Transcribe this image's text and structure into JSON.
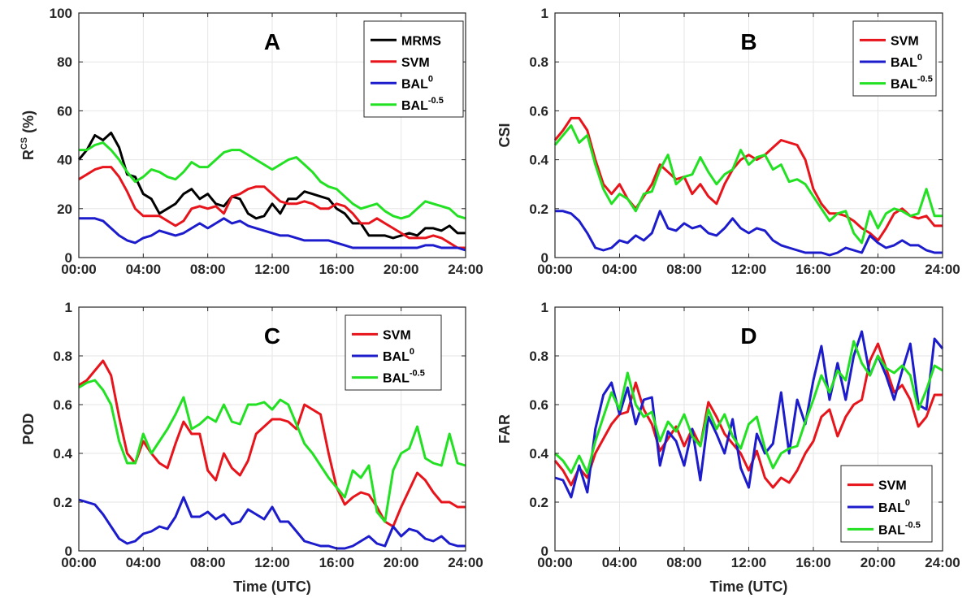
{
  "chart_data": [
    {
      "type": "line",
      "panel_letter": "A",
      "ylabel": "R",
      "ylabel_sup": "CS",
      "ylabel_suffix": " (%)",
      "xlabel": "",
      "xlim": [
        0,
        24
      ],
      "ylim": [
        0,
        100
      ],
      "yticks": [
        "0",
        "20",
        "40",
        "60",
        "80",
        "100"
      ],
      "xticks": [
        "00:00",
        "04:00",
        "08:00",
        "12:00",
        "16:00",
        "20:00",
        "24:00"
      ],
      "grid": true,
      "legend_position": "top-right",
      "x": [
        0,
        0.5,
        1,
        1.5,
        2,
        2.5,
        3,
        3.5,
        4,
        4.5,
        5,
        5.5,
        6,
        6.5,
        7,
        7.5,
        8,
        8.5,
        9,
        9.5,
        10,
        10.5,
        11,
        11.5,
        12,
        12.5,
        13,
        13.5,
        14,
        14.5,
        15,
        15.5,
        16,
        16.5,
        17,
        17.5,
        18,
        18.5,
        19,
        19.5,
        20,
        20.5,
        21,
        21.5,
        22,
        22.5,
        23,
        23.5,
        24
      ],
      "series": [
        {
          "name": "MRMS",
          "sup": "",
          "color": "#000000",
          "values": [
            40,
            44,
            50,
            48,
            51,
            45,
            34,
            33,
            26,
            24,
            18,
            20,
            22,
            26,
            28,
            24,
            26,
            22,
            21,
            25,
            24,
            18,
            16,
            17,
            22,
            18,
            24,
            24,
            27,
            26,
            25,
            24,
            20,
            18,
            14,
            14,
            9,
            9,
            9,
            8,
            9,
            10,
            9,
            12,
            12,
            11,
            13,
            10,
            10
          ]
        },
        {
          "name": "SVM",
          "sup": "",
          "color": "#e8141b",
          "values": [
            32,
            34,
            36,
            37,
            37,
            33,
            27,
            20,
            17,
            17,
            17,
            15,
            13,
            15,
            20,
            21,
            20,
            21,
            18,
            25,
            26,
            28,
            29,
            29,
            26,
            23,
            22,
            22,
            23,
            22,
            20,
            20,
            22,
            21,
            18,
            14,
            14,
            16,
            14,
            12,
            10,
            8,
            8,
            8,
            9,
            8,
            6,
            4,
            4
          ]
        },
        {
          "name": "BAL",
          "sup": "0",
          "color": "#1c1ccc",
          "values": [
            16,
            16,
            16,
            15,
            12,
            9,
            7,
            6,
            8,
            9,
            11,
            10,
            9,
            10,
            12,
            14,
            12,
            14,
            16,
            14,
            15,
            13,
            12,
            11,
            10,
            9,
            9,
            8,
            7,
            7,
            7,
            7,
            6,
            5,
            4,
            4,
            4,
            4,
            4,
            4,
            4,
            4,
            4,
            5,
            5,
            4,
            4,
            4,
            3
          ]
        },
        {
          "name": "BAL",
          "sup": "-0.5",
          "color": "#22e022",
          "values": [
            44,
            44,
            46,
            47,
            44,
            40,
            35,
            31,
            33,
            36,
            35,
            33,
            32,
            35,
            39,
            37,
            37,
            40,
            43,
            44,
            44,
            42,
            40,
            38,
            36,
            38,
            40,
            41,
            38,
            35,
            31,
            29,
            28,
            25,
            22,
            20,
            21,
            22,
            19,
            17,
            16,
            17,
            20,
            23,
            22,
            21,
            20,
            17,
            16
          ]
        }
      ]
    },
    {
      "type": "line",
      "panel_letter": "B",
      "ylabel": "CSI",
      "ylabel_sup": "",
      "ylabel_suffix": "",
      "xlabel": "",
      "xlim": [
        0,
        24
      ],
      "ylim": [
        0,
        1
      ],
      "yticks": [
        "0",
        "0.2",
        "0.4",
        "0.6",
        "0.8",
        "1"
      ],
      "xticks": [
        "00:00",
        "04:00",
        "08:00",
        "12:00",
        "16:00",
        "20:00",
        "24:00"
      ],
      "grid": true,
      "legend_position": "top-right",
      "x": [
        0,
        0.5,
        1,
        1.5,
        2,
        2.5,
        3,
        3.5,
        4,
        4.5,
        5,
        5.5,
        6,
        6.5,
        7,
        7.5,
        8,
        8.5,
        9,
        9.5,
        10,
        10.5,
        11,
        11.5,
        12,
        12.5,
        13,
        13.5,
        14,
        14.5,
        15,
        15.5,
        16,
        16.5,
        17,
        17.5,
        18,
        18.5,
        19,
        19.5,
        20,
        20.5,
        21,
        21.5,
        22,
        22.5,
        23,
        23.5,
        24
      ],
      "series": [
        {
          "name": "SVM",
          "sup": "",
          "color": "#e8141b",
          "values": [
            0.48,
            0.52,
            0.57,
            0.57,
            0.52,
            0.4,
            0.3,
            0.26,
            0.3,
            0.24,
            0.2,
            0.25,
            0.3,
            0.38,
            0.35,
            0.32,
            0.33,
            0.26,
            0.3,
            0.25,
            0.22,
            0.3,
            0.36,
            0.4,
            0.42,
            0.4,
            0.42,
            0.45,
            0.48,
            0.47,
            0.46,
            0.4,
            0.28,
            0.22,
            0.18,
            0.18,
            0.17,
            0.15,
            0.12,
            0.1,
            0.07,
            0.12,
            0.18,
            0.2,
            0.17,
            0.16,
            0.17,
            0.13,
            0.13
          ]
        },
        {
          "name": "BAL",
          "sup": "0",
          "color": "#1c1ccc",
          "values": [
            0.19,
            0.19,
            0.18,
            0.15,
            0.1,
            0.04,
            0.03,
            0.04,
            0.07,
            0.06,
            0.09,
            0.07,
            0.1,
            0.19,
            0.12,
            0.11,
            0.14,
            0.12,
            0.13,
            0.1,
            0.09,
            0.12,
            0.16,
            0.12,
            0.1,
            0.12,
            0.11,
            0.07,
            0.05,
            0.04,
            0.03,
            0.02,
            0.02,
            0.02,
            0.01,
            0.02,
            0.04,
            0.03,
            0.02,
            0.09,
            0.06,
            0.04,
            0.05,
            0.07,
            0.05,
            0.05,
            0.03,
            0.02,
            0.02
          ]
        },
        {
          "name": "BAL",
          "sup": "-0.5",
          "color": "#22e022",
          "values": [
            0.46,
            0.5,
            0.54,
            0.47,
            0.5,
            0.38,
            0.28,
            0.22,
            0.26,
            0.24,
            0.19,
            0.26,
            0.27,
            0.36,
            0.42,
            0.3,
            0.33,
            0.34,
            0.41,
            0.35,
            0.3,
            0.34,
            0.36,
            0.44,
            0.38,
            0.41,
            0.42,
            0.36,
            0.38,
            0.31,
            0.32,
            0.3,
            0.25,
            0.2,
            0.15,
            0.18,
            0.19,
            0.1,
            0.06,
            0.19,
            0.12,
            0.18,
            0.2,
            0.19,
            0.17,
            0.18,
            0.28,
            0.17,
            0.17
          ]
        }
      ]
    },
    {
      "type": "line",
      "panel_letter": "C",
      "ylabel": "POD",
      "ylabel_sup": "",
      "ylabel_suffix": "",
      "xlabel": "Time (UTC)",
      "xlim": [
        0,
        24
      ],
      "ylim": [
        0,
        1
      ],
      "yticks": [
        "0",
        "0.2",
        "0.4",
        "0.6",
        "0.8",
        "1"
      ],
      "xticks": [
        "00:00",
        "04:00",
        "08:00",
        "12:00",
        "16:00",
        "20:00",
        "24:00"
      ],
      "grid": true,
      "legend_position": "top-right",
      "x": [
        0,
        0.5,
        1,
        1.5,
        2,
        2.5,
        3,
        3.5,
        4,
        4.5,
        5,
        5.5,
        6,
        6.5,
        7,
        7.5,
        8,
        8.5,
        9,
        9.5,
        10,
        10.5,
        11,
        11.5,
        12,
        12.5,
        13,
        13.5,
        14,
        14.5,
        15,
        15.5,
        16,
        16.5,
        17,
        17.5,
        18,
        18.5,
        19,
        19.5,
        20,
        20.5,
        21,
        21.5,
        22,
        22.5,
        23,
        23.5,
        24
      ],
      "series": [
        {
          "name": "SVM",
          "sup": "",
          "color": "#e8141b",
          "values": [
            0.68,
            0.7,
            0.74,
            0.78,
            0.72,
            0.55,
            0.4,
            0.36,
            0.45,
            0.4,
            0.36,
            0.34,
            0.44,
            0.53,
            0.48,
            0.48,
            0.33,
            0.29,
            0.4,
            0.34,
            0.31,
            0.37,
            0.48,
            0.51,
            0.54,
            0.54,
            0.53,
            0.5,
            0.6,
            0.58,
            0.56,
            0.4,
            0.26,
            0.19,
            0.22,
            0.24,
            0.23,
            0.18,
            0.12,
            0.1,
            0.18,
            0.25,
            0.32,
            0.29,
            0.24,
            0.2,
            0.2,
            0.18,
            0.18
          ]
        },
        {
          "name": "BAL",
          "sup": "0",
          "color": "#1c1ccc",
          "values": [
            0.21,
            0.2,
            0.19,
            0.15,
            0.1,
            0.05,
            0.03,
            0.04,
            0.07,
            0.08,
            0.1,
            0.09,
            0.14,
            0.22,
            0.14,
            0.14,
            0.16,
            0.13,
            0.15,
            0.11,
            0.12,
            0.17,
            0.15,
            0.13,
            0.18,
            0.12,
            0.12,
            0.08,
            0.04,
            0.03,
            0.02,
            0.02,
            0.01,
            0.01,
            0.02,
            0.04,
            0.06,
            0.03,
            0.02,
            0.1,
            0.06,
            0.09,
            0.08,
            0.05,
            0.04,
            0.06,
            0.03,
            0.02,
            0.02
          ]
        },
        {
          "name": "BAL",
          "sup": "-0.5",
          "color": "#22e022",
          "values": [
            0.67,
            0.69,
            0.7,
            0.66,
            0.6,
            0.45,
            0.36,
            0.36,
            0.48,
            0.4,
            0.45,
            0.5,
            0.56,
            0.63,
            0.5,
            0.52,
            0.55,
            0.53,
            0.6,
            0.53,
            0.52,
            0.6,
            0.6,
            0.61,
            0.58,
            0.62,
            0.6,
            0.52,
            0.44,
            0.4,
            0.35,
            0.3,
            0.26,
            0.22,
            0.33,
            0.3,
            0.35,
            0.16,
            0.12,
            0.33,
            0.4,
            0.42,
            0.51,
            0.38,
            0.36,
            0.35,
            0.48,
            0.36,
            0.35
          ]
        }
      ]
    },
    {
      "type": "line",
      "panel_letter": "D",
      "ylabel": "FAR",
      "ylabel_sup": "",
      "ylabel_suffix": "",
      "xlabel": "Time (UTC)",
      "xlim": [
        0,
        24
      ],
      "ylim": [
        0,
        1
      ],
      "yticks": [
        "0",
        "0.2",
        "0.4",
        "0.6",
        "0.8",
        "1"
      ],
      "xticks": [
        "00:00",
        "04:00",
        "08:00",
        "12:00",
        "16:00",
        "20:00",
        "24:00"
      ],
      "grid": true,
      "legend_position": "bottom-right",
      "x": [
        0,
        0.5,
        1,
        1.5,
        2,
        2.5,
        3,
        3.5,
        4,
        4.5,
        5,
        5.5,
        6,
        6.5,
        7,
        7.5,
        8,
        8.5,
        9,
        9.5,
        10,
        10.5,
        11,
        11.5,
        12,
        12.5,
        13,
        13.5,
        14,
        14.5,
        15,
        15.5,
        16,
        16.5,
        17,
        17.5,
        18,
        18.5,
        19,
        19.5,
        20,
        20.5,
        21,
        21.5,
        22,
        22.5,
        23,
        23.5,
        24
      ],
      "series": [
        {
          "name": "SVM",
          "sup": "",
          "color": "#e8141b",
          "values": [
            0.37,
            0.33,
            0.27,
            0.34,
            0.3,
            0.4,
            0.46,
            0.52,
            0.56,
            0.57,
            0.69,
            0.58,
            0.52,
            0.41,
            0.46,
            0.51,
            0.43,
            0.5,
            0.43,
            0.61,
            0.55,
            0.48,
            0.44,
            0.4,
            0.33,
            0.41,
            0.3,
            0.26,
            0.3,
            0.28,
            0.33,
            0.4,
            0.45,
            0.55,
            0.58,
            0.47,
            0.55,
            0.6,
            0.62,
            0.78,
            0.85,
            0.75,
            0.65,
            0.68,
            0.62,
            0.51,
            0.55,
            0.64,
            0.64
          ]
        },
        {
          "name": "BAL",
          "sup": "0",
          "color": "#1c1ccc",
          "values": [
            0.3,
            0.29,
            0.22,
            0.35,
            0.24,
            0.5,
            0.64,
            0.69,
            0.56,
            0.67,
            0.52,
            0.62,
            0.63,
            0.35,
            0.49,
            0.45,
            0.35,
            0.5,
            0.29,
            0.55,
            0.48,
            0.4,
            0.54,
            0.34,
            0.26,
            0.48,
            0.4,
            0.44,
            0.65,
            0.4,
            0.62,
            0.52,
            0.7,
            0.84,
            0.62,
            0.77,
            0.62,
            0.8,
            0.9,
            0.72,
            0.8,
            0.72,
            0.62,
            0.74,
            0.85,
            0.6,
            0.58,
            0.87,
            0.83
          ]
        },
        {
          "name": "BAL",
          "sup": "-0.5",
          "color": "#22e022",
          "values": [
            0.4,
            0.37,
            0.32,
            0.39,
            0.32,
            0.45,
            0.55,
            0.65,
            0.58,
            0.73,
            0.6,
            0.55,
            0.57,
            0.45,
            0.53,
            0.49,
            0.56,
            0.47,
            0.43,
            0.58,
            0.5,
            0.56,
            0.47,
            0.42,
            0.52,
            0.55,
            0.42,
            0.34,
            0.4,
            0.42,
            0.43,
            0.53,
            0.62,
            0.72,
            0.65,
            0.74,
            0.7,
            0.86,
            0.77,
            0.72,
            0.8,
            0.75,
            0.73,
            0.76,
            0.72,
            0.58,
            0.66,
            0.76,
            0.74
          ]
        }
      ]
    }
  ]
}
